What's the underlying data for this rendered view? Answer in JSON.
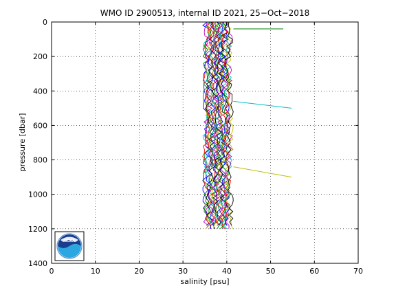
{
  "chart_data": {
    "type": "line",
    "title": "WMO ID 2900513, internal ID 2021, 25−Oct−2018",
    "xlabel": "salinity [psu]",
    "ylabel": "pressure [dbar]",
    "xlim": [
      0,
      70
    ],
    "ylim": [
      1400,
      0
    ],
    "y_reversed": true,
    "grid": true,
    "grid_style": "dotted",
    "xticks": [
      0,
      10,
      20,
      30,
      40,
      50,
      60,
      70
    ],
    "yticks": [
      0,
      200,
      400,
      600,
      800,
      1000,
      1200,
      1400
    ],
    "series_colors": [
      "#0000ff",
      "#008000",
      "#ff0000",
      "#00bfbf",
      "#bf00bf",
      "#bfbf00",
      "#000000"
    ],
    "num_profiles": 28,
    "profile_salinity_range": [
      34.5,
      41.5
    ],
    "profile_max_pressure": 1210,
    "spikes": [
      {
        "color": "#008000",
        "from": [
          41.5,
          40
        ],
        "to": [
          52.9,
          40
        ]
      },
      {
        "color": "#00bfbf",
        "from": [
          41.5,
          460
        ],
        "to": [
          54.8,
          500
        ]
      },
      {
        "color": "#bfbf00",
        "from": [
          41.5,
          840
        ],
        "to": [
          54.8,
          900
        ]
      }
    ],
    "logo": "noaa-logo"
  }
}
